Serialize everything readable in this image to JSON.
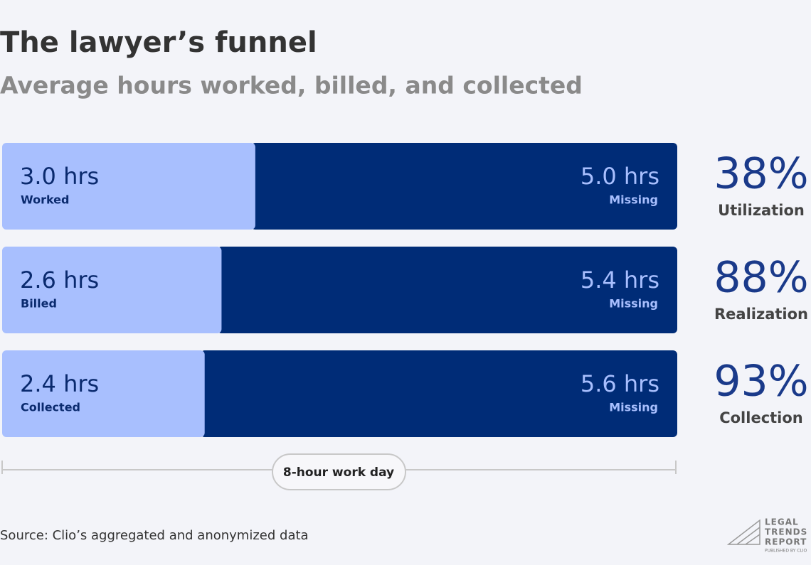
{
  "chart_data": {
    "type": "bar",
    "orientation": "horizontal",
    "stacked": true,
    "title": "The lawyer’s funnel",
    "subtitle": "Average hours worked, billed, and collected",
    "categories": [
      "Worked",
      "Billed",
      "Collected"
    ],
    "series": [
      {
        "color": "#a8bffe",
        "values": [
          3.0,
          2.6,
          2.4
        ],
        "value_labels": [
          "3.0 hrs",
          "2.6 hrs",
          "2.4 hrs"
        ]
      },
      {
        "name": "Missing",
        "color": "#002c77",
        "values": [
          5.0,
          5.4,
          5.6
        ],
        "value_labels": [
          "5.0 hrs",
          "5.4 hrs",
          "5.6 hrs"
        ]
      }
    ],
    "xlim": [
      0,
      8
    ],
    "rate_values": [
      38,
      88,
      93
    ],
    "rate_labels": [
      "38%",
      "88%",
      "93%"
    ],
    "rate_names": [
      "Utilization",
      "Realization",
      "Collection"
    ],
    "x_axis_label": "8-hour work day",
    "source": "Source: Clio’s aggregated and anonymized data"
  },
  "logo": {
    "lines": [
      "LEGAL",
      "TRENDS",
      "REPORT"
    ],
    "byline": "PUBLISHED BY CLIO"
  }
}
